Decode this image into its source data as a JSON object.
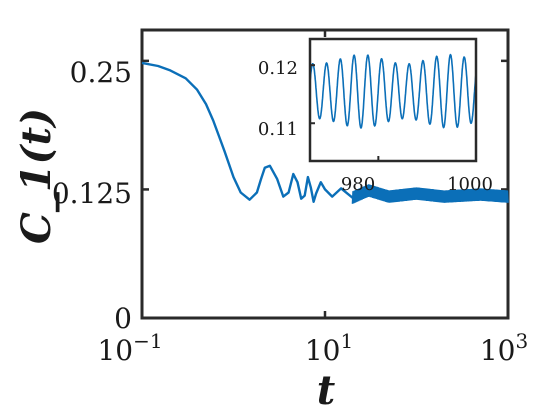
{
  "chart_data": [
    {
      "type": "line",
      "title": "",
      "xlabel": "t",
      "ylabel": "C_1(t)",
      "xscale": "log",
      "xlim": [
        0.1,
        1000
      ],
      "ylim": [
        0,
        0.28
      ],
      "xticks": [
        0.1,
        10,
        1000
      ],
      "xtick_labels": [
        {
          "base": "10",
          "exp": "−1"
        },
        {
          "base": "10",
          "exp": "1"
        },
        {
          "base": "10",
          "exp": "3"
        }
      ],
      "yticks": [
        0,
        0.125,
        0.25
      ],
      "ytick_labels": [
        "0",
        "0.125",
        "0.25"
      ],
      "grid": false,
      "color": "#0b6fb8",
      "series": [
        {
          "x": [
            0.1,
            0.15,
            0.2,
            0.3,
            0.4,
            0.5,
            0.6,
            0.7,
            0.8,
            1.0,
            1.2,
            1.5,
            1.8,
            2.0,
            2.2,
            2.5,
            3.0,
            3.5,
            4.0,
            4.5,
            5.0,
            5.5,
            6.0,
            6.5,
            7.0,
            7.5,
            8.0,
            9.0,
            10,
            12,
            15,
            20,
            30,
            50,
            100,
            200,
            500,
            1000
          ],
          "y": [
            0.248,
            0.245,
            0.241,
            0.233,
            0.222,
            0.208,
            0.192,
            0.176,
            0.162,
            0.137,
            0.122,
            0.115,
            0.122,
            0.135,
            0.146,
            0.148,
            0.135,
            0.118,
            0.122,
            0.14,
            0.132,
            0.116,
            0.119,
            0.137,
            0.127,
            0.113,
            0.121,
            0.132,
            0.125,
            0.118,
            0.126,
            0.117,
            0.124,
            0.118,
            0.121,
            0.118,
            0.12,
            0.118
          ]
        }
      ],
      "band": {
        "x_start": 20,
        "x_end": 1000,
        "half_width": 0.006
      }
    },
    {
      "type": "line",
      "title": "",
      "xlabel": "",
      "ylabel": "",
      "xlim": [
        966,
        1000
      ],
      "ylim": [
        0.1035,
        0.1245
      ],
      "xticks": [
        980,
        1000
      ],
      "yticks": [
        0.11,
        0.12
      ],
      "ytick_labels": [
        "0.11",
        "0.12"
      ],
      "xtick_labels": [
        "980",
        "1000"
      ],
      "grid": false,
      "color": "#0b6fb8",
      "oscillation": {
        "period": 2.82,
        "center": 0.1155,
        "amplitude": 0.0055,
        "envelope_amplitude": 0.0008,
        "envelope_period": 18
      }
    }
  ]
}
